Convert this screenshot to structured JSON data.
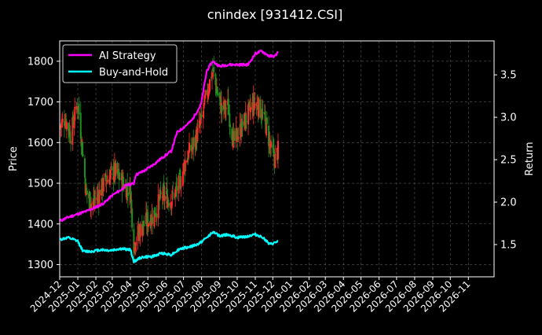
{
  "chart_data": {
    "type": "line",
    "title": "cnindex [931412.CSI]",
    "xlabel": "",
    "ylabel_left": "Price",
    "ylabel_right": "Return",
    "xlim": [
      "2024-12-01",
      "2026-12-15"
    ],
    "ylim_left": [
      1270,
      1850
    ],
    "ylim_right": [
      1.12,
      3.9
    ],
    "yticks_left": [
      1300,
      1400,
      1500,
      1600,
      1700,
      1800
    ],
    "yticks_right": [
      "1.5",
      "2.0",
      "2.5",
      "3.0",
      "3.5"
    ],
    "x_tick_labels": [
      "2024-12",
      "2025-01",
      "2025-02",
      "2025-03",
      "2025-04",
      "2025-05",
      "2025-06",
      "2025-07",
      "2025-08",
      "2025-09",
      "2025-10",
      "2025-11",
      "2025-12",
      "2026-01",
      "2026-02",
      "2026-03",
      "2026-04",
      "2026-05",
      "2026-06",
      "2026-07",
      "2026-08",
      "2026-09",
      "2026-10",
      "2026-11"
    ],
    "grid": true,
    "legend_position": "top-left",
    "colors": {
      "ai_strategy": "#ff00ff",
      "buy_and_hold": "#00ffff",
      "candle_up": "#ff2a2a",
      "candle_down": "#1f8f1f",
      "background": "#000000",
      "grid": "#5a5a5a"
    },
    "series": [
      {
        "name": "AI Strategy",
        "axis": "right",
        "points": [
          [
            "2024-12-02",
            1.78
          ],
          [
            "2024-12-15",
            1.82
          ],
          [
            "2025-01-01",
            1.86
          ],
          [
            "2025-01-15",
            1.89
          ],
          [
            "2025-02-01",
            1.94
          ],
          [
            "2025-02-15",
            1.99
          ],
          [
            "2025-03-01",
            2.08
          ],
          [
            "2025-03-15",
            2.14
          ],
          [
            "2025-03-25",
            2.2
          ],
          [
            "2025-04-07",
            2.22
          ],
          [
            "2025-04-10",
            2.32
          ],
          [
            "2025-04-25",
            2.37
          ],
          [
            "2025-05-10",
            2.44
          ],
          [
            "2025-05-25",
            2.52
          ],
          [
            "2025-06-10",
            2.6
          ],
          [
            "2025-06-20",
            2.82
          ],
          [
            "2025-07-01",
            2.88
          ],
          [
            "2025-07-15",
            2.96
          ],
          [
            "2025-07-31",
            3.15
          ],
          [
            "2025-08-10",
            3.55
          ],
          [
            "2025-08-20",
            3.66
          ],
          [
            "2025-09-01",
            3.6
          ],
          [
            "2025-09-15",
            3.62
          ],
          [
            "2025-10-01",
            3.62
          ],
          [
            "2025-10-20",
            3.62
          ],
          [
            "2025-11-01",
            3.75
          ],
          [
            "2025-11-12",
            3.78
          ],
          [
            "2025-11-25",
            3.72
          ],
          [
            "2025-12-05",
            3.72
          ],
          [
            "2025-12-10",
            3.77
          ]
        ]
      },
      {
        "name": "Buy-and-Hold",
        "axis": "right",
        "points": [
          [
            "2024-12-02",
            1.56
          ],
          [
            "2024-12-15",
            1.58
          ],
          [
            "2025-01-01",
            1.54
          ],
          [
            "2025-01-10",
            1.42
          ],
          [
            "2025-01-25",
            1.42
          ],
          [
            "2025-02-10",
            1.44
          ],
          [
            "2025-02-25",
            1.43
          ],
          [
            "2025-03-15",
            1.45
          ],
          [
            "2025-04-01",
            1.44
          ],
          [
            "2025-04-07",
            1.3
          ],
          [
            "2025-04-20",
            1.35
          ],
          [
            "2025-05-10",
            1.36
          ],
          [
            "2025-05-25",
            1.4
          ],
          [
            "2025-06-10",
            1.38
          ],
          [
            "2025-06-25",
            1.45
          ],
          [
            "2025-07-10",
            1.47
          ],
          [
            "2025-07-25",
            1.5
          ],
          [
            "2025-08-10",
            1.58
          ],
          [
            "2025-08-20",
            1.65
          ],
          [
            "2025-09-01",
            1.6
          ],
          [
            "2025-09-15",
            1.62
          ],
          [
            "2025-10-01",
            1.58
          ],
          [
            "2025-10-20",
            1.6
          ],
          [
            "2025-11-01",
            1.62
          ],
          [
            "2025-11-15",
            1.58
          ],
          [
            "2025-11-25",
            1.5
          ],
          [
            "2025-12-05",
            1.52
          ],
          [
            "2025-12-10",
            1.54
          ]
        ]
      },
      {
        "name": "price",
        "axis": "left",
        "type": "candlestick",
        "points": [
          [
            "2024-12-02",
            1640
          ],
          [
            "2024-12-10",
            1660
          ],
          [
            "2024-12-20",
            1620
          ],
          [
            "2025-01-01",
            1700
          ],
          [
            "2025-01-08",
            1600
          ],
          [
            "2025-01-15",
            1480
          ],
          [
            "2025-01-25",
            1450
          ],
          [
            "2025-02-05",
            1470
          ],
          [
            "2025-02-15",
            1500
          ],
          [
            "2025-02-25",
            1520
          ],
          [
            "2025-03-05",
            1530
          ],
          [
            "2025-03-15",
            1510
          ],
          [
            "2025-03-25",
            1490
          ],
          [
            "2025-04-01",
            1480
          ],
          [
            "2025-04-07",
            1350
          ],
          [
            "2025-04-15",
            1380
          ],
          [
            "2025-04-25",
            1400
          ],
          [
            "2025-05-10",
            1420
          ],
          [
            "2025-05-25",
            1470
          ],
          [
            "2025-06-10",
            1460
          ],
          [
            "2025-06-25",
            1500
          ],
          [
            "2025-07-05",
            1560
          ],
          [
            "2025-07-20",
            1600
          ],
          [
            "2025-07-31",
            1650
          ],
          [
            "2025-08-10",
            1720
          ],
          [
            "2025-08-20",
            1780
          ],
          [
            "2025-08-25",
            1740
          ],
          [
            "2025-09-05",
            1680
          ],
          [
            "2025-09-15",
            1690
          ],
          [
            "2025-09-25",
            1600
          ],
          [
            "2025-10-20",
            1670
          ],
          [
            "2025-11-01",
            1700
          ],
          [
            "2025-11-10",
            1680
          ],
          [
            "2025-11-20",
            1640
          ],
          [
            "2025-11-28",
            1580
          ],
          [
            "2025-12-05",
            1560
          ],
          [
            "2025-12-10",
            1580
          ]
        ]
      }
    ]
  }
}
